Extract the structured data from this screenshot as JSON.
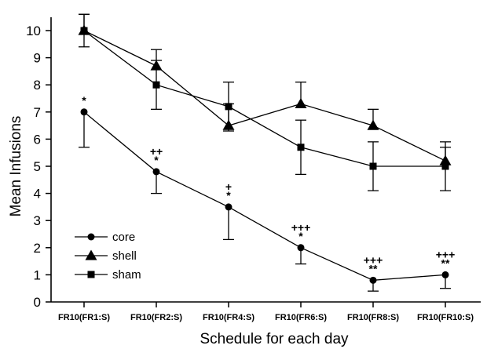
{
  "chart_data": {
    "type": "line",
    "title": "",
    "xlabel": "Schedule for each day",
    "ylabel": "Mean Infusions",
    "categories": [
      "FR10(FR1:S)",
      "FR10(FR2:S)",
      "FR10(FR4:S)",
      "FR10(FR6:S)",
      "FR10(FR8:S)",
      "FR10(FR10:S)"
    ],
    "ylim": [
      0,
      10.6
    ],
    "yticks": [
      0,
      1,
      2,
      3,
      4,
      5,
      6,
      7,
      8,
      9,
      10
    ],
    "grid": false,
    "legend_position": "bottom-left",
    "series": [
      {
        "name": "core",
        "marker": "circle",
        "values": [
          7.0,
          4.8,
          3.5,
          2.0,
          0.8,
          1.0
        ],
        "error": [
          1.3,
          0.8,
          1.2,
          0.6,
          0.4,
          0.5
        ],
        "error_dir": "down"
      },
      {
        "name": "shell",
        "marker": "triangle",
        "values": [
          10.0,
          8.7,
          6.5,
          7.3,
          6.5,
          5.2
        ],
        "error": [
          0.6,
          0.6,
          0.8,
          0.8,
          0.6,
          0.5
        ],
        "error_dir": "up"
      },
      {
        "name": "sham",
        "marker": "square",
        "values": [
          10.0,
          8.0,
          7.2,
          5.7,
          5.0,
          5.0
        ],
        "error": [
          0.6,
          0.9,
          0.9,
          1.0,
          0.9,
          0.9
        ],
        "error_dir": "both"
      }
    ],
    "annotations": [
      {
        "category": 0,
        "lines": [
          "*"
        ]
      },
      {
        "category": 1,
        "lines": [
          "++",
          "*"
        ]
      },
      {
        "category": 2,
        "lines": [
          "+",
          "*"
        ]
      },
      {
        "category": 3,
        "lines": [
          "+++",
          "*"
        ]
      },
      {
        "category": 4,
        "lines": [
          "+++",
          "**"
        ]
      },
      {
        "category": 5,
        "lines": [
          "+++",
          "**"
        ]
      }
    ]
  }
}
